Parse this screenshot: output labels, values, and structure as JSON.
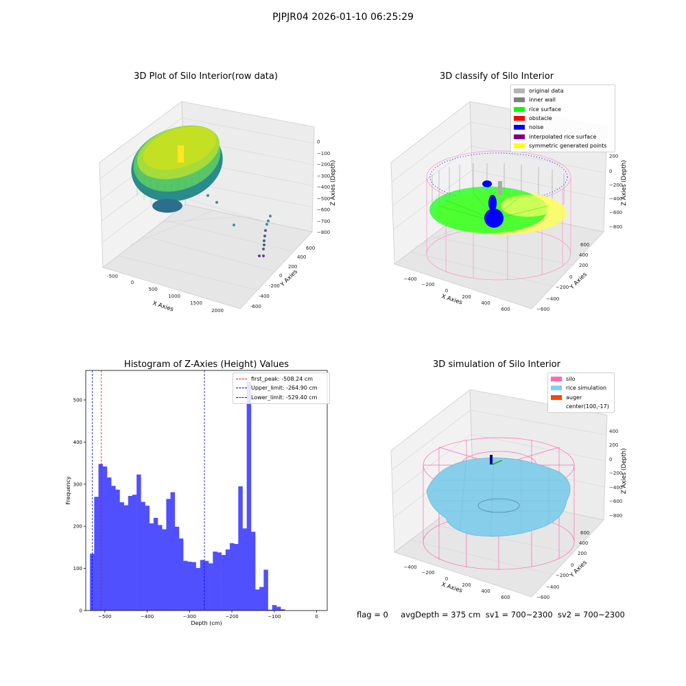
{
  "figure": {
    "suptitle": "PJPJR04 2026-01-10 06:25:29",
    "footer": {
      "flag": "flag = 0",
      "avg_depth": "avgDepth = 375 cm",
      "sv1": "sv1 = 700~2300",
      "sv2": "sv2 = 700~2300"
    }
  },
  "panels": {
    "raw": {
      "title": "3D Plot of Silo Interior(row data)",
      "xlabel": "X Axies",
      "ylabel": "Y Axies",
      "zlabel": "Z Axies (Depth)",
      "xticks": [
        "-500",
        "0",
        "500",
        "1000",
        "1500",
        "2000"
      ],
      "yticks": [
        "-600",
        "-400",
        "-200",
        "0",
        "200",
        "400",
        "600"
      ],
      "zticks": [
        "0",
        "−100",
        "−200",
        "−300",
        "−400",
        "−500",
        "−600",
        "−700",
        "−800"
      ]
    },
    "classify": {
      "title": "3D classify of Silo Interior",
      "xlabel": "X Axies",
      "ylabel": "Y Axies",
      "zlabel": "Z Axies (Depth)",
      "xticks": [
        "−400",
        "−200",
        "0",
        "200",
        "400",
        "600"
      ],
      "yticks": [
        "−600",
        "−400",
        "−200",
        "0",
        "200",
        "400",
        "600"
      ],
      "zticks": [
        "200",
        "0",
        "−200",
        "−400",
        "−600",
        "−800"
      ],
      "legend": [
        {
          "label": "original data",
          "color": "#b4b4b4"
        },
        {
          "label": "inner wall",
          "color": "#808080"
        },
        {
          "label": "rice surface",
          "color": "#00ff00"
        },
        {
          "label": "obstacle",
          "color": "#ff0000"
        },
        {
          "label": "noise",
          "color": "#0000ff"
        },
        {
          "label": "interpolated rice surface",
          "color": "#800080"
        },
        {
          "label": "symmetric generated points",
          "color": "#ffff00"
        }
      ]
    },
    "simulation": {
      "title": "3D simulation of Silo Interior",
      "xlabel": "X Axies",
      "ylabel": "Y Axies",
      "zlabel": "Z Axies (Depth)",
      "xticks": [
        "−400",
        "−200",
        "0",
        "200",
        "400",
        "600"
      ],
      "yticks": [
        "−600",
        "−400",
        "−200",
        "0",
        "200",
        "400",
        "600"
      ],
      "zticks": [
        "400",
        "200",
        "0",
        "−200",
        "−400",
        "−600",
        "−800"
      ],
      "legend": [
        {
          "label": "silo",
          "color": "#ff69b4"
        },
        {
          "label": "rice simulation",
          "color": "#87ceeb"
        },
        {
          "label": "auger",
          "color": "#ff4500"
        },
        {
          "label": "center(100,-17)",
          "color": ""
        }
      ]
    }
  },
  "chart_data": {
    "type": "bar",
    "title": "Histogram of Z-Axies (Height) Values",
    "xlabel": "Depth (cm)",
    "ylabel": "Frequency",
    "bar_color": "#5050ff",
    "xlim": [
      -545,
      25
    ],
    "ylim": [
      0,
      570
    ],
    "bin_start": -535,
    "bin_width": 10,
    "xticks": [
      -500,
      -400,
      -300,
      -200,
      -100,
      0
    ],
    "yticks": [
      0,
      100,
      200,
      300,
      400,
      500
    ],
    "values": [
      135,
      270,
      348,
      342,
      316,
      296,
      287,
      257,
      250,
      272,
      275,
      323,
      258,
      249,
      207,
      220,
      203,
      193,
      265,
      281,
      199,
      171,
      118,
      116,
      115,
      101,
      120,
      118,
      112,
      140,
      138,
      132,
      145,
      160,
      158,
      295,
      195,
      543,
      187,
      50,
      56,
      97,
      2,
      13,
      9,
      3
    ],
    "vlines": [
      {
        "value": -508.24,
        "label": "first_peak: -508.24 cm",
        "color": "#ff0000"
      },
      {
        "value": -264.9,
        "label": "Upper_limit: -264.90 cm",
        "color": "#0000cc"
      },
      {
        "value": -529.4,
        "label": "Lower_limit: -529.40 cm",
        "color": "#0000cc"
      }
    ]
  }
}
